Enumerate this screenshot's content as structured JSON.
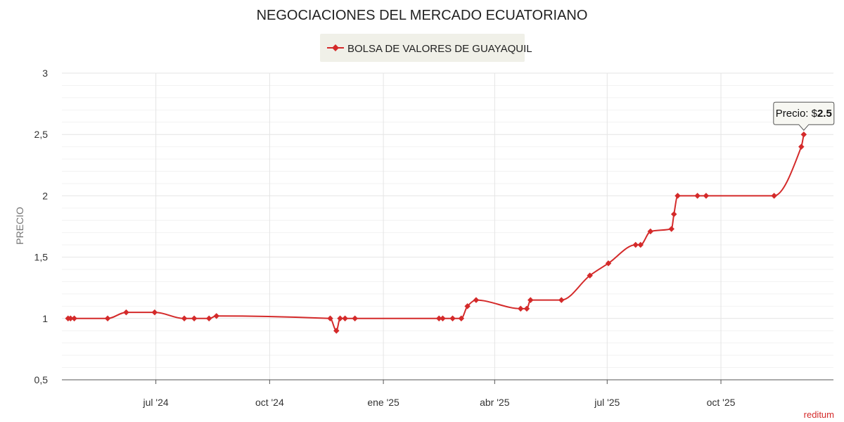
{
  "chart_data": {
    "type": "line",
    "title": "NEGOCIACIONES DEL MERCADO ECUATORIANO",
    "ylabel": "PRECIO",
    "xlabel": "",
    "ylim": [
      0.5,
      3
    ],
    "xlim": [
      "2024-04-16",
      "2025-12-31"
    ],
    "y_ticks": [
      0.5,
      1,
      1.5,
      2,
      2.5,
      3
    ],
    "y_tick_labels": [
      "0,5",
      "1",
      "1,5",
      "2",
      "2,5",
      "3"
    ],
    "x_ticks": [
      {
        "date": "2024-07-01",
        "label": "jul '24"
      },
      {
        "date": "2024-10-01",
        "label": "oct '24"
      },
      {
        "date": "2025-01-01",
        "label": "ene '25"
      },
      {
        "date": "2025-04-01",
        "label": "abr '25"
      },
      {
        "date": "2025-07-01",
        "label": "jul '25"
      },
      {
        "date": "2025-10-01",
        "label": "oct '25"
      }
    ],
    "grid": true,
    "legend_position": "top-center",
    "series": [
      {
        "name": "BOLSA DE VALORES DE GUAYAQUIL",
        "color": "#d42a2a",
        "points": [
          {
            "x": "2024-04-21",
            "y": 1.0
          },
          {
            "x": "2024-04-23",
            "y": 1.0
          },
          {
            "x": "2024-04-26",
            "y": 1.0
          },
          {
            "x": "2024-05-23",
            "y": 1.0
          },
          {
            "x": "2024-06-07",
            "y": 1.05
          },
          {
            "x": "2024-06-30",
            "y": 1.05
          },
          {
            "x": "2024-07-24",
            "y": 1.0
          },
          {
            "x": "2024-08-01",
            "y": 1.0
          },
          {
            "x": "2024-08-13",
            "y": 1.0
          },
          {
            "x": "2024-08-19",
            "y": 1.02
          },
          {
            "x": "2024-11-19",
            "y": 1.0
          },
          {
            "x": "2024-11-24",
            "y": 0.9
          },
          {
            "x": "2024-11-27",
            "y": 1.0
          },
          {
            "x": "2024-12-01",
            "y": 1.0
          },
          {
            "x": "2024-12-09",
            "y": 1.0
          },
          {
            "x": "2025-02-15",
            "y": 1.0
          },
          {
            "x": "2025-02-18",
            "y": 1.0
          },
          {
            "x": "2025-02-26",
            "y": 1.0
          },
          {
            "x": "2025-03-05",
            "y": 1.0
          },
          {
            "x": "2025-03-10",
            "y": 1.1
          },
          {
            "x": "2025-03-17",
            "y": 1.15
          },
          {
            "x": "2025-04-22",
            "y": 1.08
          },
          {
            "x": "2025-04-27",
            "y": 1.08
          },
          {
            "x": "2025-04-30",
            "y": 1.15
          },
          {
            "x": "2025-05-25",
            "y": 1.15
          },
          {
            "x": "2025-06-17",
            "y": 1.35
          },
          {
            "x": "2025-07-02",
            "y": 1.45
          },
          {
            "x": "2025-07-24",
            "y": 1.6
          },
          {
            "x": "2025-07-28",
            "y": 1.6
          },
          {
            "x": "2025-08-05",
            "y": 1.71
          },
          {
            "x": "2025-08-22",
            "y": 1.73
          },
          {
            "x": "2025-08-24",
            "y": 1.85
          },
          {
            "x": "2025-08-27",
            "y": 2.0
          },
          {
            "x": "2025-09-12",
            "y": 2.0
          },
          {
            "x": "2025-09-19",
            "y": 2.0
          },
          {
            "x": "2025-11-13",
            "y": 2.0
          },
          {
            "x": "2025-12-05",
            "y": 2.4
          },
          {
            "x": "2025-12-07",
            "y": 2.5
          }
        ]
      }
    ],
    "tooltip": {
      "label": "Precio: $",
      "value": "2.5"
    }
  },
  "brand": "reditum",
  "colors": {
    "line": "#d42a2a",
    "legend_bg": "#f0f0e8",
    "grid_major": "#e4e4e4",
    "grid_minor": "#f2f2f2",
    "axis": "#555555",
    "brand": "#d42a2a"
  }
}
